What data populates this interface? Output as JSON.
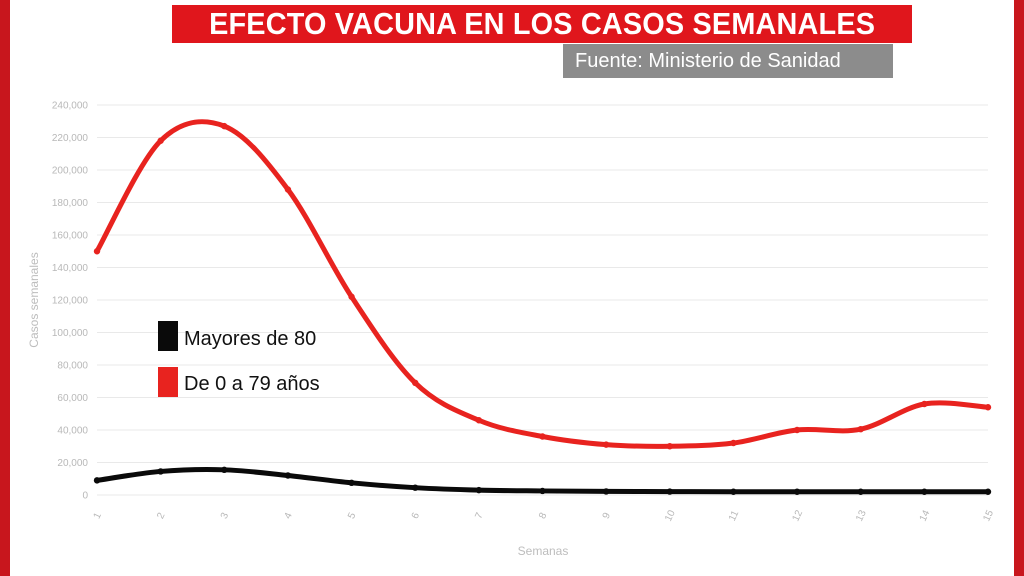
{
  "header": {
    "title": "EFECTO VACUNA EN LOS CASOS SEMANALES",
    "source": "Fuente: Ministerio de Sanidad"
  },
  "colors": {
    "brand_red": "#e0161c",
    "frame_red": "#c8161d",
    "source_gray": "#8c8c8c",
    "series_red": "#e8231f",
    "series_black": "#0a0a0a",
    "grid": "#e9e9e9"
  },
  "chart_data": {
    "type": "line",
    "xlabel": "Semanas",
    "ylabel": "Casos semanales",
    "x": [
      1,
      2,
      3,
      4,
      5,
      6,
      7,
      8,
      9,
      10,
      11,
      12,
      13,
      14,
      15
    ],
    "xlim": [
      1,
      15
    ],
    "ylim": [
      0,
      240000
    ],
    "yticks": [
      0,
      20000,
      40000,
      60000,
      80000,
      100000,
      120000,
      140000,
      160000,
      180000,
      200000,
      220000,
      240000
    ],
    "ytick_labels": [
      "0",
      "20,000",
      "40,000",
      "60,000",
      "80,000",
      "100,000",
      "120,000",
      "140,000",
      "160,000",
      "180,000",
      "200,000",
      "220,000",
      "240,000"
    ],
    "xtick_labels": [
      "1",
      "2",
      "3",
      "4",
      "5",
      "6",
      "7",
      "8",
      "9",
      "10",
      "11",
      "12",
      "13",
      "14",
      "15"
    ],
    "grid": true,
    "legend_position": "center-left",
    "series": [
      {
        "name": "Mayores de 80",
        "color": "#0a0a0a",
        "values": [
          9000,
          14500,
          15500,
          12000,
          7500,
          4500,
          3000,
          2500,
          2200,
          2100,
          2000,
          2000,
          2000,
          2000,
          2000
        ]
      },
      {
        "name": "De 0 a 79 años",
        "color": "#e8231f",
        "values": [
          150000,
          218000,
          227000,
          188000,
          122000,
          69000,
          46000,
          36000,
          31000,
          30000,
          32000,
          40000,
          40500,
          56000,
          54000
        ]
      }
    ]
  }
}
